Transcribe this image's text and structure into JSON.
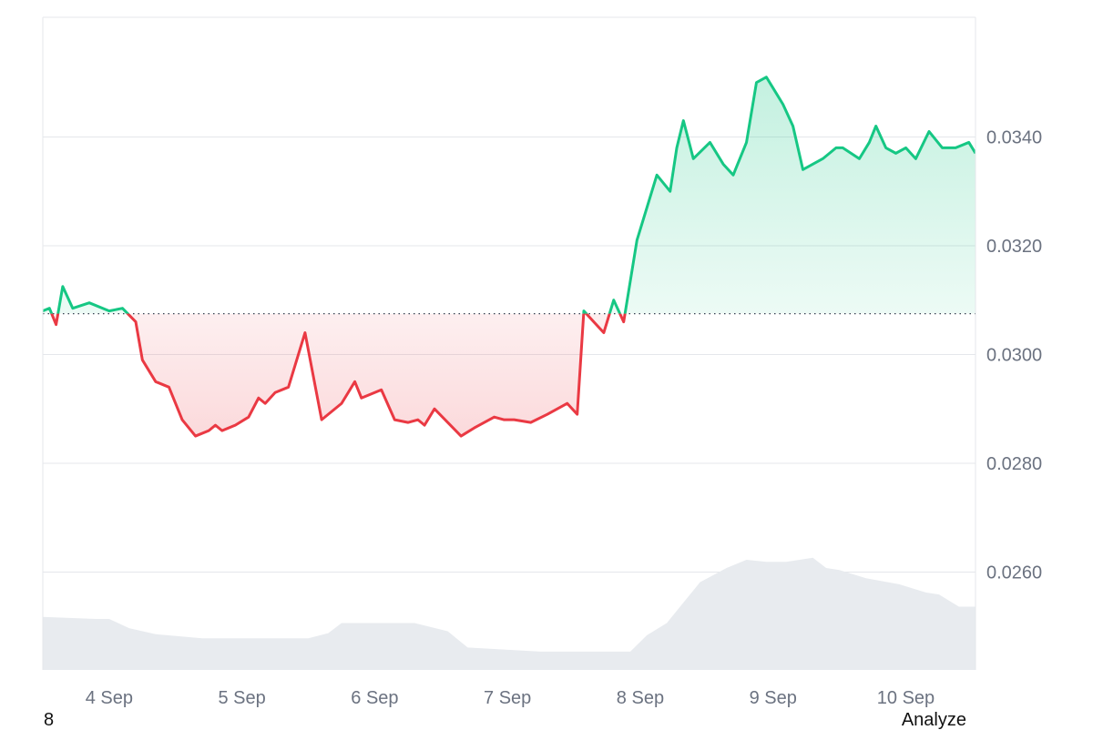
{
  "chart_data": {
    "type": "line",
    "series": [
      {
        "x": [
          0,
          0.1,
          0.2,
          0.3,
          0.45,
          0.7,
          1.0,
          1.2,
          1.4,
          1.5,
          1.7,
          1.9,
          2.1,
          2.3,
          2.5,
          2.6,
          2.7,
          2.9,
          3.1,
          3.25,
          3.35,
          3.5,
          3.7,
          3.95,
          4.2,
          4.5,
          4.7,
          4.8,
          5.1,
          5.3,
          5.5,
          5.65,
          5.75,
          5.9,
          6.3,
          6.5,
          6.8,
          6.95,
          7.1,
          7.35,
          7.6,
          7.9,
          8.05,
          8.15,
          8.3,
          8.45,
          8.6,
          8.75,
          8.95,
          9.25,
          9.45,
          9.55,
          9.65,
          9.8,
          10.05,
          10.25,
          10.4,
          10.6,
          10.75,
          10.9,
          11.0,
          11.15,
          11.3,
          11.45,
          11.6,
          11.75,
          11.85,
          11.95,
          12.05,
          12.3,
          12.45,
          12.55,
          12.7,
          12.85,
          13.0,
          13.15,
          13.35,
          13.55,
          13.75,
          13.95,
          14.05
        ],
        "values": [
          0.0308,
          0.03085,
          0.03055,
          0.03125,
          0.03085,
          0.03095,
          0.0308,
          0.03085,
          0.0306,
          0.0299,
          0.0295,
          0.0294,
          0.0288,
          0.0285,
          0.0286,
          0.0287,
          0.0286,
          0.0287,
          0.02885,
          0.0292,
          0.0291,
          0.0293,
          0.0294,
          0.0304,
          0.0288,
          0.0291,
          0.0295,
          0.0292,
          0.02935,
          0.0288,
          0.02875,
          0.0288,
          0.0287,
          0.029,
          0.0285,
          0.02865,
          0.02885,
          0.0288,
          0.0288,
          0.02875,
          0.0289,
          0.0291,
          0.0289,
          0.0308,
          0.0306,
          0.0304,
          0.031,
          0.0306,
          0.0321,
          0.0333,
          0.033,
          0.0338,
          0.0343,
          0.0336,
          0.0339,
          0.0335,
          0.0333,
          0.0339,
          0.035,
          0.0351,
          0.0349,
          0.0346,
          0.0342,
          0.0334,
          0.0335,
          0.0336,
          0.0337,
          0.0338,
          0.0338,
          0.0336,
          0.0339,
          0.0342,
          0.0338,
          0.0337,
          0.0338,
          0.0336,
          0.0341,
          0.0338,
          0.0338,
          0.0339,
          0.0337
        ]
      }
    ],
    "baseline": 0.03075,
    "xlim": [
      0,
      14.05
    ],
    "ylim": [
      0.0242,
      0.0362
    ],
    "yticks": [
      "0.0340",
      "0.0320",
      "0.0300",
      "0.0280",
      "0.0260"
    ],
    "ytick_values": [
      0.034,
      0.032,
      0.03,
      0.028,
      0.026
    ],
    "xticks": [
      "4 Sep",
      "5 Sep",
      "6 Sep",
      "7 Sep",
      "8 Sep",
      "9 Sep",
      "10 Sep"
    ],
    "xtick_values": [
      1,
      3,
      5,
      7,
      9,
      11,
      13
    ],
    "volume": {
      "x": [
        0,
        0.8,
        1.0,
        1.3,
        1.7,
        2.4,
        4.0,
        4.3,
        4.5,
        5.0,
        5.6,
        6.1,
        6.4,
        7.5,
        8.0,
        8.6,
        8.85,
        9.1,
        9.4,
        9.6,
        9.9,
        10.3,
        10.6,
        10.9,
        11.2,
        11.6,
        11.8,
        12.0,
        12.4,
        12.9,
        13.3,
        13.5,
        13.8,
        14.05
      ],
      "values": [
        0.52,
        0.5,
        0.5,
        0.41,
        0.35,
        0.31,
        0.31,
        0.36,
        0.46,
        0.46,
        0.46,
        0.38,
        0.22,
        0.18,
        0.18,
        0.18,
        0.18,
        0.34,
        0.46,
        0.62,
        0.86,
        1.0,
        1.08,
        1.06,
        1.06,
        1.1,
        1.0,
        0.98,
        0.9,
        0.84,
        0.76,
        0.74,
        0.62,
        0.62
      ]
    },
    "colors": {
      "up_line": "#16c784",
      "down_line": "#ea3943",
      "up_fill": "#16c784",
      "down_fill": "#ea3943",
      "volume": "#e8ebef",
      "grid": "#e5e7eb",
      "baseline": "#374151",
      "axis_text": "#6b7280"
    },
    "grid": true
  },
  "footer": {
    "left_text": "8",
    "analyze_label": "Analyze"
  }
}
